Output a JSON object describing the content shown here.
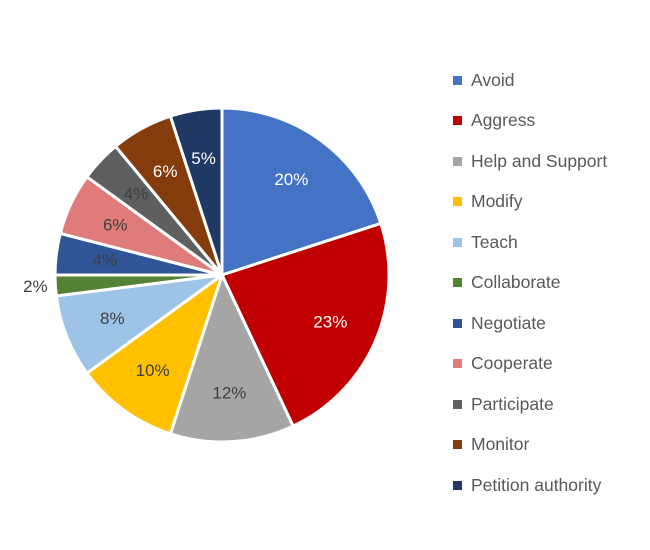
{
  "chart_data": {
    "type": "pie",
    "title": "",
    "start_angle_deg": 0,
    "direction": "clockwise",
    "legend_position": "right",
    "slices": [
      {
        "label": "Avoid",
        "value": 20,
        "display": "20%",
        "color": "#4472C4",
        "text_color": "#ffffff"
      },
      {
        "label": "Aggress",
        "value": 23,
        "display": "23%",
        "color": "#C00000",
        "text_color": "#ffffff"
      },
      {
        "label": "Help and Support",
        "value": 12,
        "display": "12%",
        "color": "#A5A5A5",
        "text_color": "#404040"
      },
      {
        "label": "Modify",
        "value": 10,
        "display": "10%",
        "color": "#FFC000",
        "text_color": "#404040"
      },
      {
        "label": "Teach",
        "value": 8,
        "display": "8%",
        "color": "#9DC3E6",
        "text_color": "#404040"
      },
      {
        "label": "Collaborate",
        "value": 2,
        "display": "2%",
        "color": "#548235",
        "text_color": "#404040"
      },
      {
        "label": "Negotiate",
        "value": 4,
        "display": "4%",
        "color": "#2F5597",
        "text_color": "#404040"
      },
      {
        "label": "Cooperate",
        "value": 6,
        "display": "6%",
        "color": "#E07B7B",
        "text_color": "#404040"
      },
      {
        "label": "Participate",
        "value": 4,
        "display": "4%",
        "color": "#5F5F5F",
        "text_color": "#404040"
      },
      {
        "label": "Monitor",
        "value": 6,
        "display": "6%",
        "color": "#843C0C",
        "text_color": "#ffffff"
      },
      {
        "label": "Petition authority",
        "value": 5,
        "display": "5%",
        "color": "#1F3864",
        "text_color": "#ffffff"
      }
    ]
  }
}
